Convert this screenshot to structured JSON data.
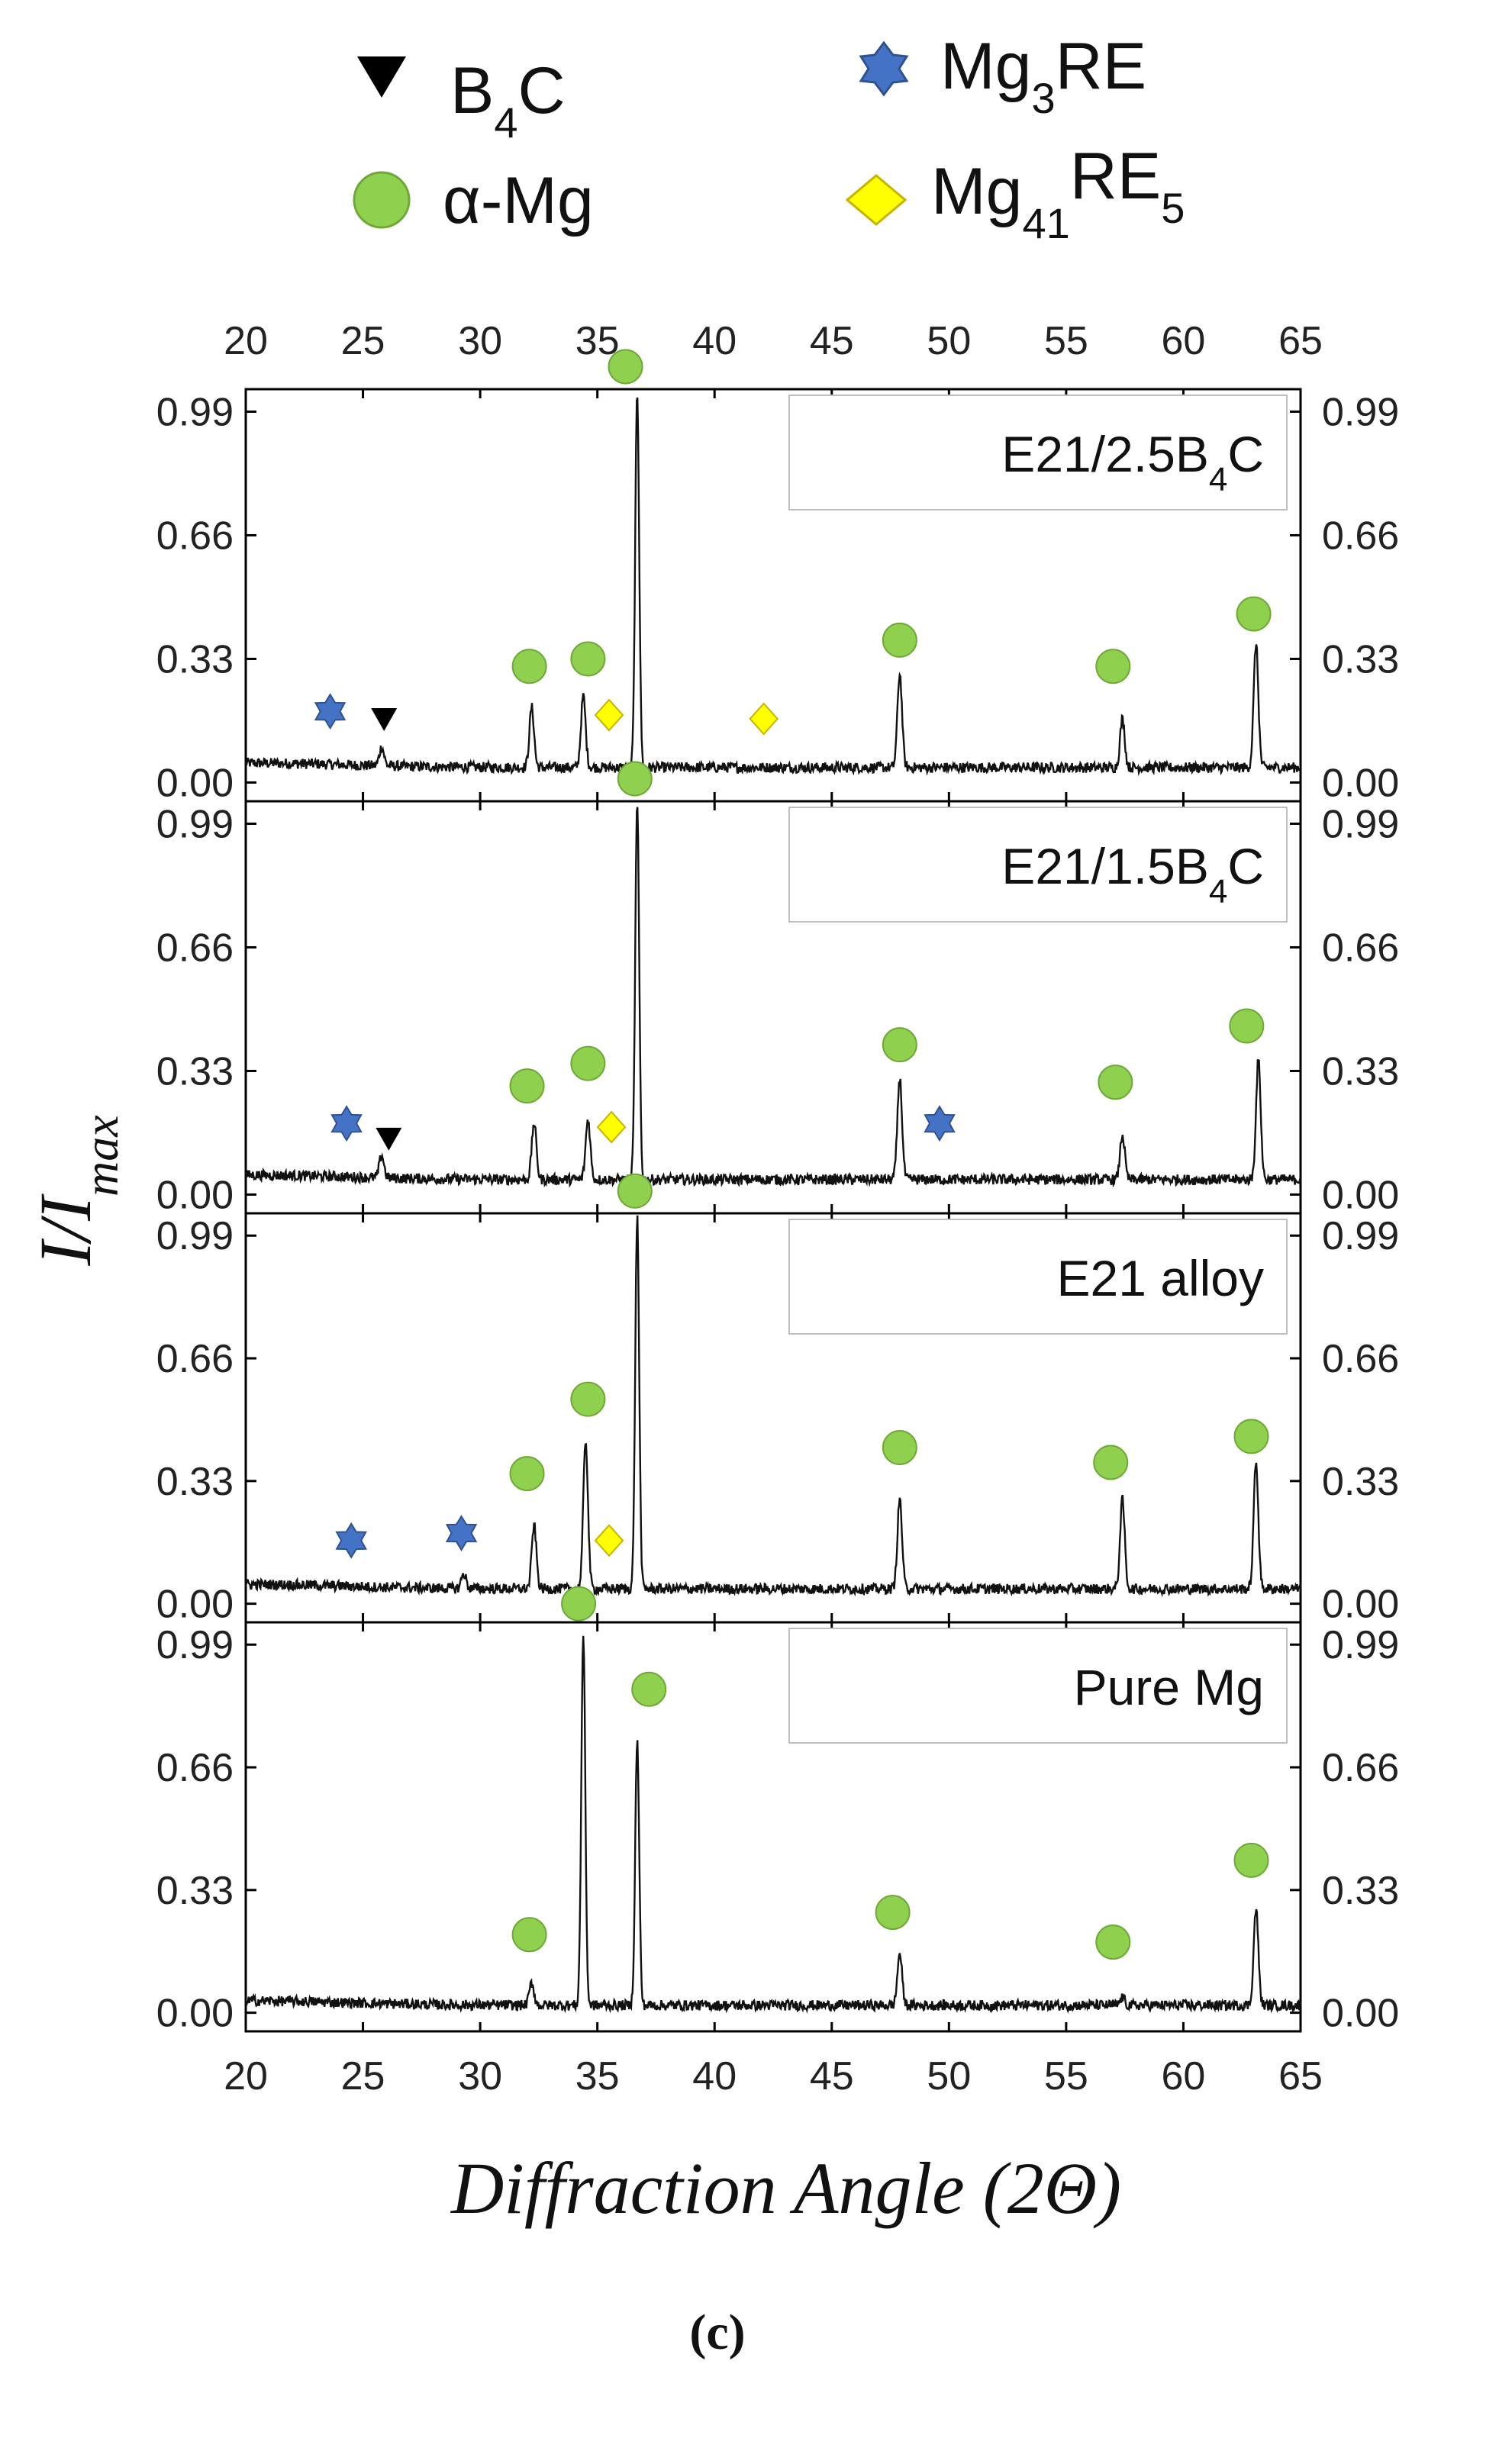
{
  "legend": {
    "items": [
      {
        "marker": "triangle-down",
        "color": "#000000",
        "label": "B",
        "sub": "4",
        "tail": "C"
      },
      {
        "marker": "circle",
        "color": "#8fd14f",
        "label": "α-Mg",
        "sub": "",
        "tail": ""
      },
      {
        "marker": "star6",
        "color": "#4472c4",
        "label": "Mg",
        "sub": "3",
        "tail": "RE"
      },
      {
        "marker": "diamond",
        "color": "#ffff00",
        "label": "Mg",
        "sub": "41",
        "tail": "RE",
        "sub2": "5"
      }
    ]
  },
  "axes": {
    "y_label_main": "I/I",
    "y_label_sub": "max",
    "x_label": "Diffraction Angle (2Θ)",
    "caption": "(c)"
  },
  "chart_data": {
    "type": "line",
    "xlim": [
      20,
      65
    ],
    "ylim": [
      -0.05,
      1.05
    ],
    "x_ticks": [
      "20",
      "25",
      "30",
      "35",
      "40",
      "45",
      "50",
      "55",
      "60",
      "65"
    ],
    "y_ticks": [
      "0.00",
      "0.33",
      "0.66",
      "0.99"
    ],
    "grid": false,
    "panels": [
      {
        "name": "E21/2.5B",
        "name_sub": "4",
        "name_tail": "C",
        "baseline": 0.04,
        "peaks": [
          [
            25.8,
            0.05
          ],
          [
            32.2,
            0.16
          ],
          [
            34.4,
            0.19
          ],
          [
            36.7,
            1.0
          ],
          [
            47.9,
            0.25
          ],
          [
            57.4,
            0.13
          ],
          [
            63.1,
            0.33
          ]
        ],
        "markers": [
          {
            "type": "star6",
            "x": 23.6,
            "y": 0.19
          },
          {
            "type": "triangle-down",
            "x": 25.9,
            "y": 0.17
          },
          {
            "type": "circle",
            "x": 32.1,
            "y": 0.31
          },
          {
            "type": "circle",
            "x": 34.6,
            "y": 0.33
          },
          {
            "type": "diamond",
            "x": 35.5,
            "y": 0.18
          },
          {
            "type": "circle",
            "x": 36.2,
            "y": 1.11
          },
          {
            "type": "diamond",
            "x": 42.1,
            "y": 0.17
          },
          {
            "type": "circle",
            "x": 47.9,
            "y": 0.38
          },
          {
            "type": "circle",
            "x": 57.0,
            "y": 0.31
          },
          {
            "type": "circle",
            "x": 63.0,
            "y": 0.45
          }
        ]
      },
      {
        "name": "E21/1.5B",
        "name_sub": "4",
        "name_tail": "C",
        "baseline": 0.04,
        "peaks": [
          [
            25.8,
            0.06
          ],
          [
            32.3,
            0.15
          ],
          [
            34.6,
            0.16
          ],
          [
            36.7,
            1.0
          ],
          [
            47.9,
            0.27
          ],
          [
            57.4,
            0.12
          ],
          [
            63.2,
            0.32
          ]
        ],
        "markers": [
          {
            "type": "star6",
            "x": 24.3,
            "y": 0.19
          },
          {
            "type": "triangle-down",
            "x": 26.1,
            "y": 0.15
          },
          {
            "type": "circle",
            "x": 32.0,
            "y": 0.29
          },
          {
            "type": "circle",
            "x": 34.6,
            "y": 0.35
          },
          {
            "type": "diamond",
            "x": 35.6,
            "y": 0.18
          },
          {
            "type": "circle",
            "x": 36.6,
            "y": 1.11
          },
          {
            "type": "circle",
            "x": 47.9,
            "y": 0.4
          },
          {
            "type": "star6",
            "x": 49.6,
            "y": 0.19
          },
          {
            "type": "circle",
            "x": 57.1,
            "y": 0.3
          },
          {
            "type": "circle",
            "x": 62.7,
            "y": 0.45
          }
        ]
      },
      {
        "name": "E21 alloy",
        "name_sub": "",
        "name_tail": "",
        "baseline": 0.04,
        "peaks": [
          [
            29.3,
            0.04
          ],
          [
            32.3,
            0.17
          ],
          [
            34.5,
            0.4
          ],
          [
            36.7,
            1.0
          ],
          [
            47.9,
            0.24
          ],
          [
            57.4,
            0.24
          ],
          [
            63.1,
            0.34
          ]
        ],
        "markers": [
          {
            "type": "star6",
            "x": 24.5,
            "y": 0.17
          },
          {
            "type": "star6",
            "x": 29.2,
            "y": 0.19
          },
          {
            "type": "circle",
            "x": 32.0,
            "y": 0.35
          },
          {
            "type": "circle",
            "x": 34.6,
            "y": 0.55
          },
          {
            "type": "diamond",
            "x": 35.5,
            "y": 0.17
          },
          {
            "type": "circle",
            "x": 36.6,
            "y": 1.11
          },
          {
            "type": "circle",
            "x": 47.9,
            "y": 0.42
          },
          {
            "type": "circle",
            "x": 56.9,
            "y": 0.38
          },
          {
            "type": "circle",
            "x": 62.9,
            "y": 0.45
          }
        ]
      },
      {
        "name": "Pure Mg",
        "name_sub": "",
        "name_tail": "",
        "baseline": 0.02,
        "peaks": [
          [
            32.2,
            0.06
          ],
          [
            34.4,
            1.0
          ],
          [
            36.7,
            0.71
          ],
          [
            47.9,
            0.14
          ],
          [
            57.4,
            0.02
          ],
          [
            63.1,
            0.26
          ]
        ],
        "markers": [
          {
            "type": "circle",
            "x": 32.1,
            "y": 0.21
          },
          {
            "type": "circle",
            "x": 34.2,
            "y": 1.1
          },
          {
            "type": "circle",
            "x": 37.2,
            "y": 0.87
          },
          {
            "type": "circle",
            "x": 47.6,
            "y": 0.27
          },
          {
            "type": "circle",
            "x": 57.0,
            "y": 0.19
          },
          {
            "type": "circle",
            "x": 62.9,
            "y": 0.41
          }
        ]
      }
    ]
  }
}
